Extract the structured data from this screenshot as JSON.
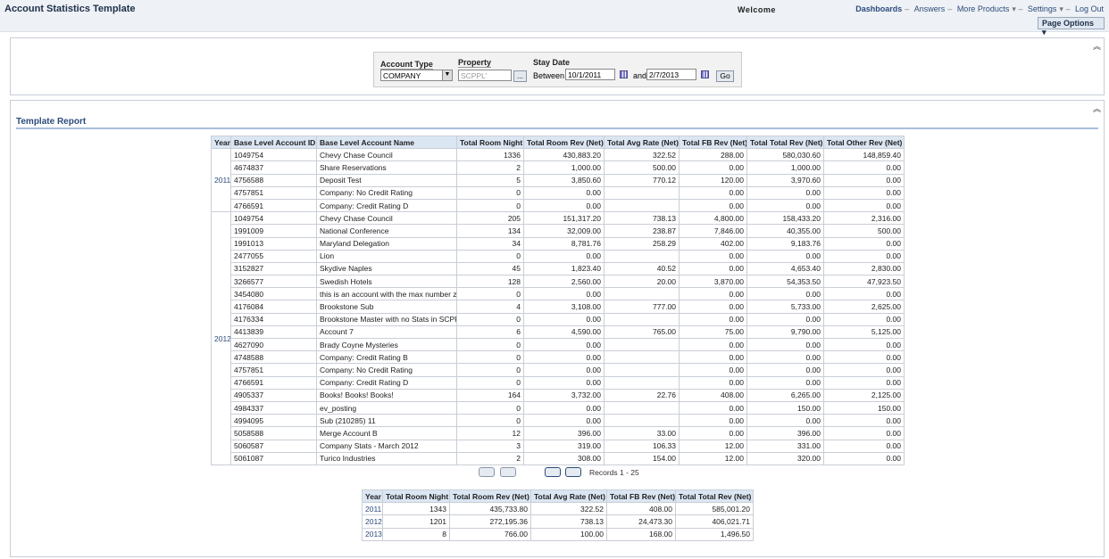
{
  "header": {
    "title": "Account Statistics Template",
    "welcome": "Welcome",
    "links": [
      "Dashboards",
      "Answers",
      "More Products",
      "Settings",
      "Log Out"
    ],
    "page_options": "Page Options"
  },
  "prompts": {
    "account_type_label": "Account Type",
    "account_type_value": "COMPANY",
    "property_label": "Property",
    "property_value": "SCPPL'",
    "browse_button": "...",
    "stay_date_label": "Stay Date",
    "between_label": "Between",
    "start_date": "10/1/2011",
    "and_label": "and",
    "end_date": "2/7/2013",
    "go_button": "Go"
  },
  "report": {
    "title": "Template Report",
    "table": {
      "columns": [
        "Year",
        "Base Level Account ID",
        "Base Level Account Name",
        "Total Room Night",
        "Total Room Rev (Net)",
        "Total Avg Rate (Net)",
        "Total FB Rev (Net)",
        "Total Total Rev (Net)",
        "Total Other Rev (Net)"
      ],
      "groups": [
        {
          "year": "2011",
          "rows": [
            [
              "1049754",
              "Chevy Chase Council",
              "1336",
              "430,883.20",
              "322.52",
              "288.00",
              "580,030.60",
              "148,859.40"
            ],
            [
              "4674837",
              "Share Reservations",
              "2",
              "1,000.00",
              "500.00",
              "0.00",
              "1,000.00",
              "0.00"
            ],
            [
              "4756588",
              "Deposit Test",
              "5",
              "3,850.60",
              "770.12",
              "120.00",
              "3,970.60",
              "0.00"
            ],
            [
              "4757851",
              "Company: No Credit Rating",
              "0",
              "0.00",
              null,
              "0.00",
              "0.00",
              "0.00"
            ],
            [
              "4766591",
              "Company: Credit Rating D",
              "0",
              "0.00",
              null,
              "0.00",
              "0.00",
              "0.00"
            ]
          ]
        },
        {
          "year": "2012",
          "rows": [
            [
              "1049754",
              "Chevy Chase Council",
              "205",
              "151,317.20",
              "738.13",
              "4,800.00",
              "158,433.20",
              "2,316.00"
            ],
            [
              "1991009",
              "National Conference",
              "134",
              "32,009.00",
              "238.87",
              "7,846.00",
              "40,355.00",
              "500.00"
            ],
            [
              "1991013",
              "Maryland Delegation",
              "34",
              "8,781.76",
              "258.29",
              "402.00",
              "9,183.76",
              "0.00"
            ],
            [
              "2477055",
              "Lion",
              "0",
              "0.00",
              null,
              "0.00",
              "0.00",
              "0.00"
            ],
            [
              "3152827",
              "Skydive Naples",
              "45",
              "1,823.40",
              "40.52",
              "0.00",
              "4,653.40",
              "2,830.00"
            ],
            [
              "3266577",
              "Swedish Hotels",
              "128",
              "2,560.00",
              "20.00",
              "3,870.00",
              "54,353.50",
              "47,923.50"
            ],
            [
              "3454080",
              "this is an account with the max number z",
              "0",
              "0.00",
              null,
              "0.00",
              "0.00",
              "0.00"
            ],
            [
              "4176084",
              "Brookstone Sub",
              "4",
              "3,108.00",
              "777.00",
              "0.00",
              "5,733.00",
              "2,625.00"
            ],
            [
              "4176334",
              "Brookstone Master with no Stats in SCPPL",
              "0",
              "0.00",
              null,
              "0.00",
              "0.00",
              "0.00"
            ],
            [
              "4413839",
              "Account 7",
              "6",
              "4,590.00",
              "765.00",
              "75.00",
              "9,790.00",
              "5,125.00"
            ],
            [
              "4627090",
              "Brady Coyne Mysteries",
              "0",
              "0.00",
              null,
              "0.00",
              "0.00",
              "0.00"
            ],
            [
              "4748588",
              "Company: Credit Rating B",
              "0",
              "0.00",
              null,
              "0.00",
              "0.00",
              "0.00"
            ],
            [
              "4757851",
              "Company: No Credit Rating",
              "0",
              "0.00",
              null,
              "0.00",
              "0.00",
              "0.00"
            ],
            [
              "4766591",
              "Company: Credit Rating D",
              "0",
              "0.00",
              null,
              "0.00",
              "0.00",
              "0.00"
            ],
            [
              "4905337",
              "Books! Books! Books!",
              "164",
              "3,732.00",
              "22.76",
              "408.00",
              "6,265.00",
              "2,125.00"
            ],
            [
              "4984337",
              "ev_posting",
              "0",
              "0.00",
              null,
              "0.00",
              "150.00",
              "150.00"
            ],
            [
              "4994095",
              "Sub (210285) 11",
              "0",
              "0.00",
              null,
              "0.00",
              "0.00",
              "0.00"
            ],
            [
              "5058588",
              "Merge Account B",
              "12",
              "396.00",
              "33.00",
              "0.00",
              "396.00",
              "0.00"
            ],
            [
              "5060587",
              "Company Stats - March 2012",
              "3",
              "319.00",
              "106.33",
              "12.00",
              "331.00",
              "0.00"
            ],
            [
              "5061087",
              "Turico Industries",
              "2",
              "308.00",
              "154.00",
              "12.00",
              "320.00",
              "0.00"
            ]
          ]
        }
      ]
    },
    "pager": {
      "records": "Records 1 - 25"
    },
    "summary": {
      "columns": [
        "Year",
        "Total Room Night",
        "Total Room Rev (Net)",
        "Total Avg Rate (Net)",
        "Total FB Rev (Net)",
        "Total Total Rev (Net)"
      ],
      "rows": [
        [
          "2011",
          "1343",
          "435,733.80",
          "322.52",
          "408.00",
          "585,001.20"
        ],
        [
          "2012",
          "1201",
          "272,195.36",
          "738.13",
          "24,473.30",
          "406,021.71"
        ],
        [
          "2013",
          "8",
          "766.00",
          "100.00",
          "168.00",
          "1,496.50"
        ]
      ]
    }
  }
}
